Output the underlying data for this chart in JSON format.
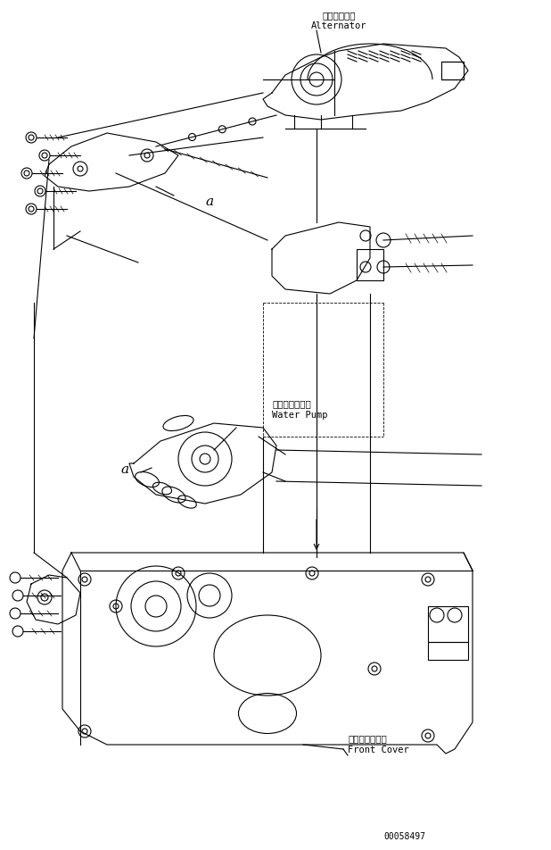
{
  "bg_color": "#ffffff",
  "line_color": "#000000",
  "fig_width": 6.18,
  "fig_height": 9.53,
  "dpi": 100,
  "labels": {
    "alternator_jp": "オルタネータ",
    "alternator_en": "Alternator",
    "water_pump_jp": "ウォータポンプ",
    "water_pump_en": "Water Pump",
    "front_cover_jp": "フロントカバー",
    "front_cover_en": "Front Cover",
    "part_number": "00058497",
    "label_a1": "a",
    "label_a2": "a"
  },
  "font_size_label": 7.5,
  "font_size_partnum": 7.0,
  "font_size_a": 11
}
